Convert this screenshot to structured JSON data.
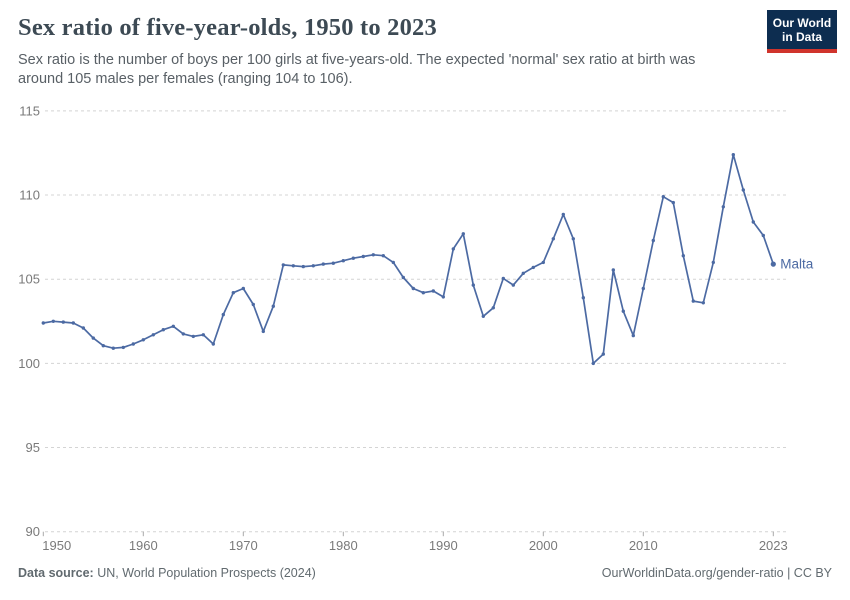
{
  "header": {
    "title": "Sex ratio of five-year-olds, 1950 to 2023",
    "subtitle": "Sex ratio is the number of boys per 100 girls at five-years-old. The expected 'normal' sex ratio at birth was around 105 males per females (ranging 104 to 106)."
  },
  "logo": {
    "line1": "Our World",
    "line2": "in Data",
    "bg_color": "#0d2d50",
    "bar_color": "#d0342c"
  },
  "chart_data": {
    "type": "line",
    "title": "Sex ratio of five-year-olds, 1950 to 2023",
    "xlabel": "",
    "ylabel": "boys per 100 girls",
    "xlim": [
      1950,
      2023
    ],
    "ylim": [
      90,
      115
    ],
    "yticks": [
      90,
      95,
      100,
      105,
      110,
      115
    ],
    "xticks": [
      1950,
      1960,
      1970,
      1980,
      1990,
      2000,
      2010,
      2023
    ],
    "grid": "horizontal-dashed",
    "legend": "end-of-line-label",
    "x": [
      1950,
      1951,
      1952,
      1953,
      1954,
      1955,
      1956,
      1957,
      1958,
      1959,
      1960,
      1961,
      1962,
      1963,
      1964,
      1965,
      1966,
      1967,
      1968,
      1969,
      1970,
      1971,
      1972,
      1973,
      1974,
      1975,
      1976,
      1977,
      1978,
      1979,
      1980,
      1981,
      1982,
      1983,
      1984,
      1985,
      1986,
      1987,
      1988,
      1989,
      1990,
      1991,
      1992,
      1993,
      1994,
      1995,
      1996,
      1997,
      1998,
      1999,
      2000,
      2001,
      2002,
      2003,
      2004,
      2005,
      2006,
      2007,
      2008,
      2009,
      2010,
      2011,
      2012,
      2013,
      2014,
      2015,
      2016,
      2017,
      2018,
      2019,
      2020,
      2021,
      2022,
      2023
    ],
    "series": [
      {
        "name": "Malta",
        "color": "#4c6aa3",
        "values": [
          102.4,
          102.5,
          102.45,
          102.4,
          102.1,
          101.5,
          101.05,
          100.9,
          100.95,
          101.15,
          101.4,
          101.7,
          102.0,
          102.2,
          101.75,
          101.6,
          101.7,
          101.15,
          102.9,
          104.2,
          104.45,
          103.5,
          101.9,
          103.4,
          105.85,
          105.8,
          105.75,
          105.8,
          105.9,
          105.95,
          106.1,
          106.25,
          106.35,
          106.45,
          106.4,
          106.0,
          105.1,
          104.45,
          104.2,
          104.3,
          103.95,
          106.8,
          107.7,
          104.65,
          102.8,
          103.3,
          105.05,
          104.65,
          105.35,
          105.7,
          106.0,
          107.4,
          108.85,
          107.4,
          103.9,
          100.0,
          100.55,
          105.55,
          103.1,
          101.65,
          104.45,
          107.3,
          109.9,
          109.55,
          106.4,
          103.7,
          103.6,
          106.0,
          109.3,
          112.4,
          110.3,
          108.4,
          107.6,
          105.9
        ]
      }
    ],
    "axis_color": "#7a7a7a",
    "grid_color": "#d4d4d4"
  },
  "footer": {
    "source_label": "Data source:",
    "source_text": " UN, World Population Prospects (2024)",
    "right_text": "OurWorldinData.org/gender-ratio | CC BY"
  }
}
